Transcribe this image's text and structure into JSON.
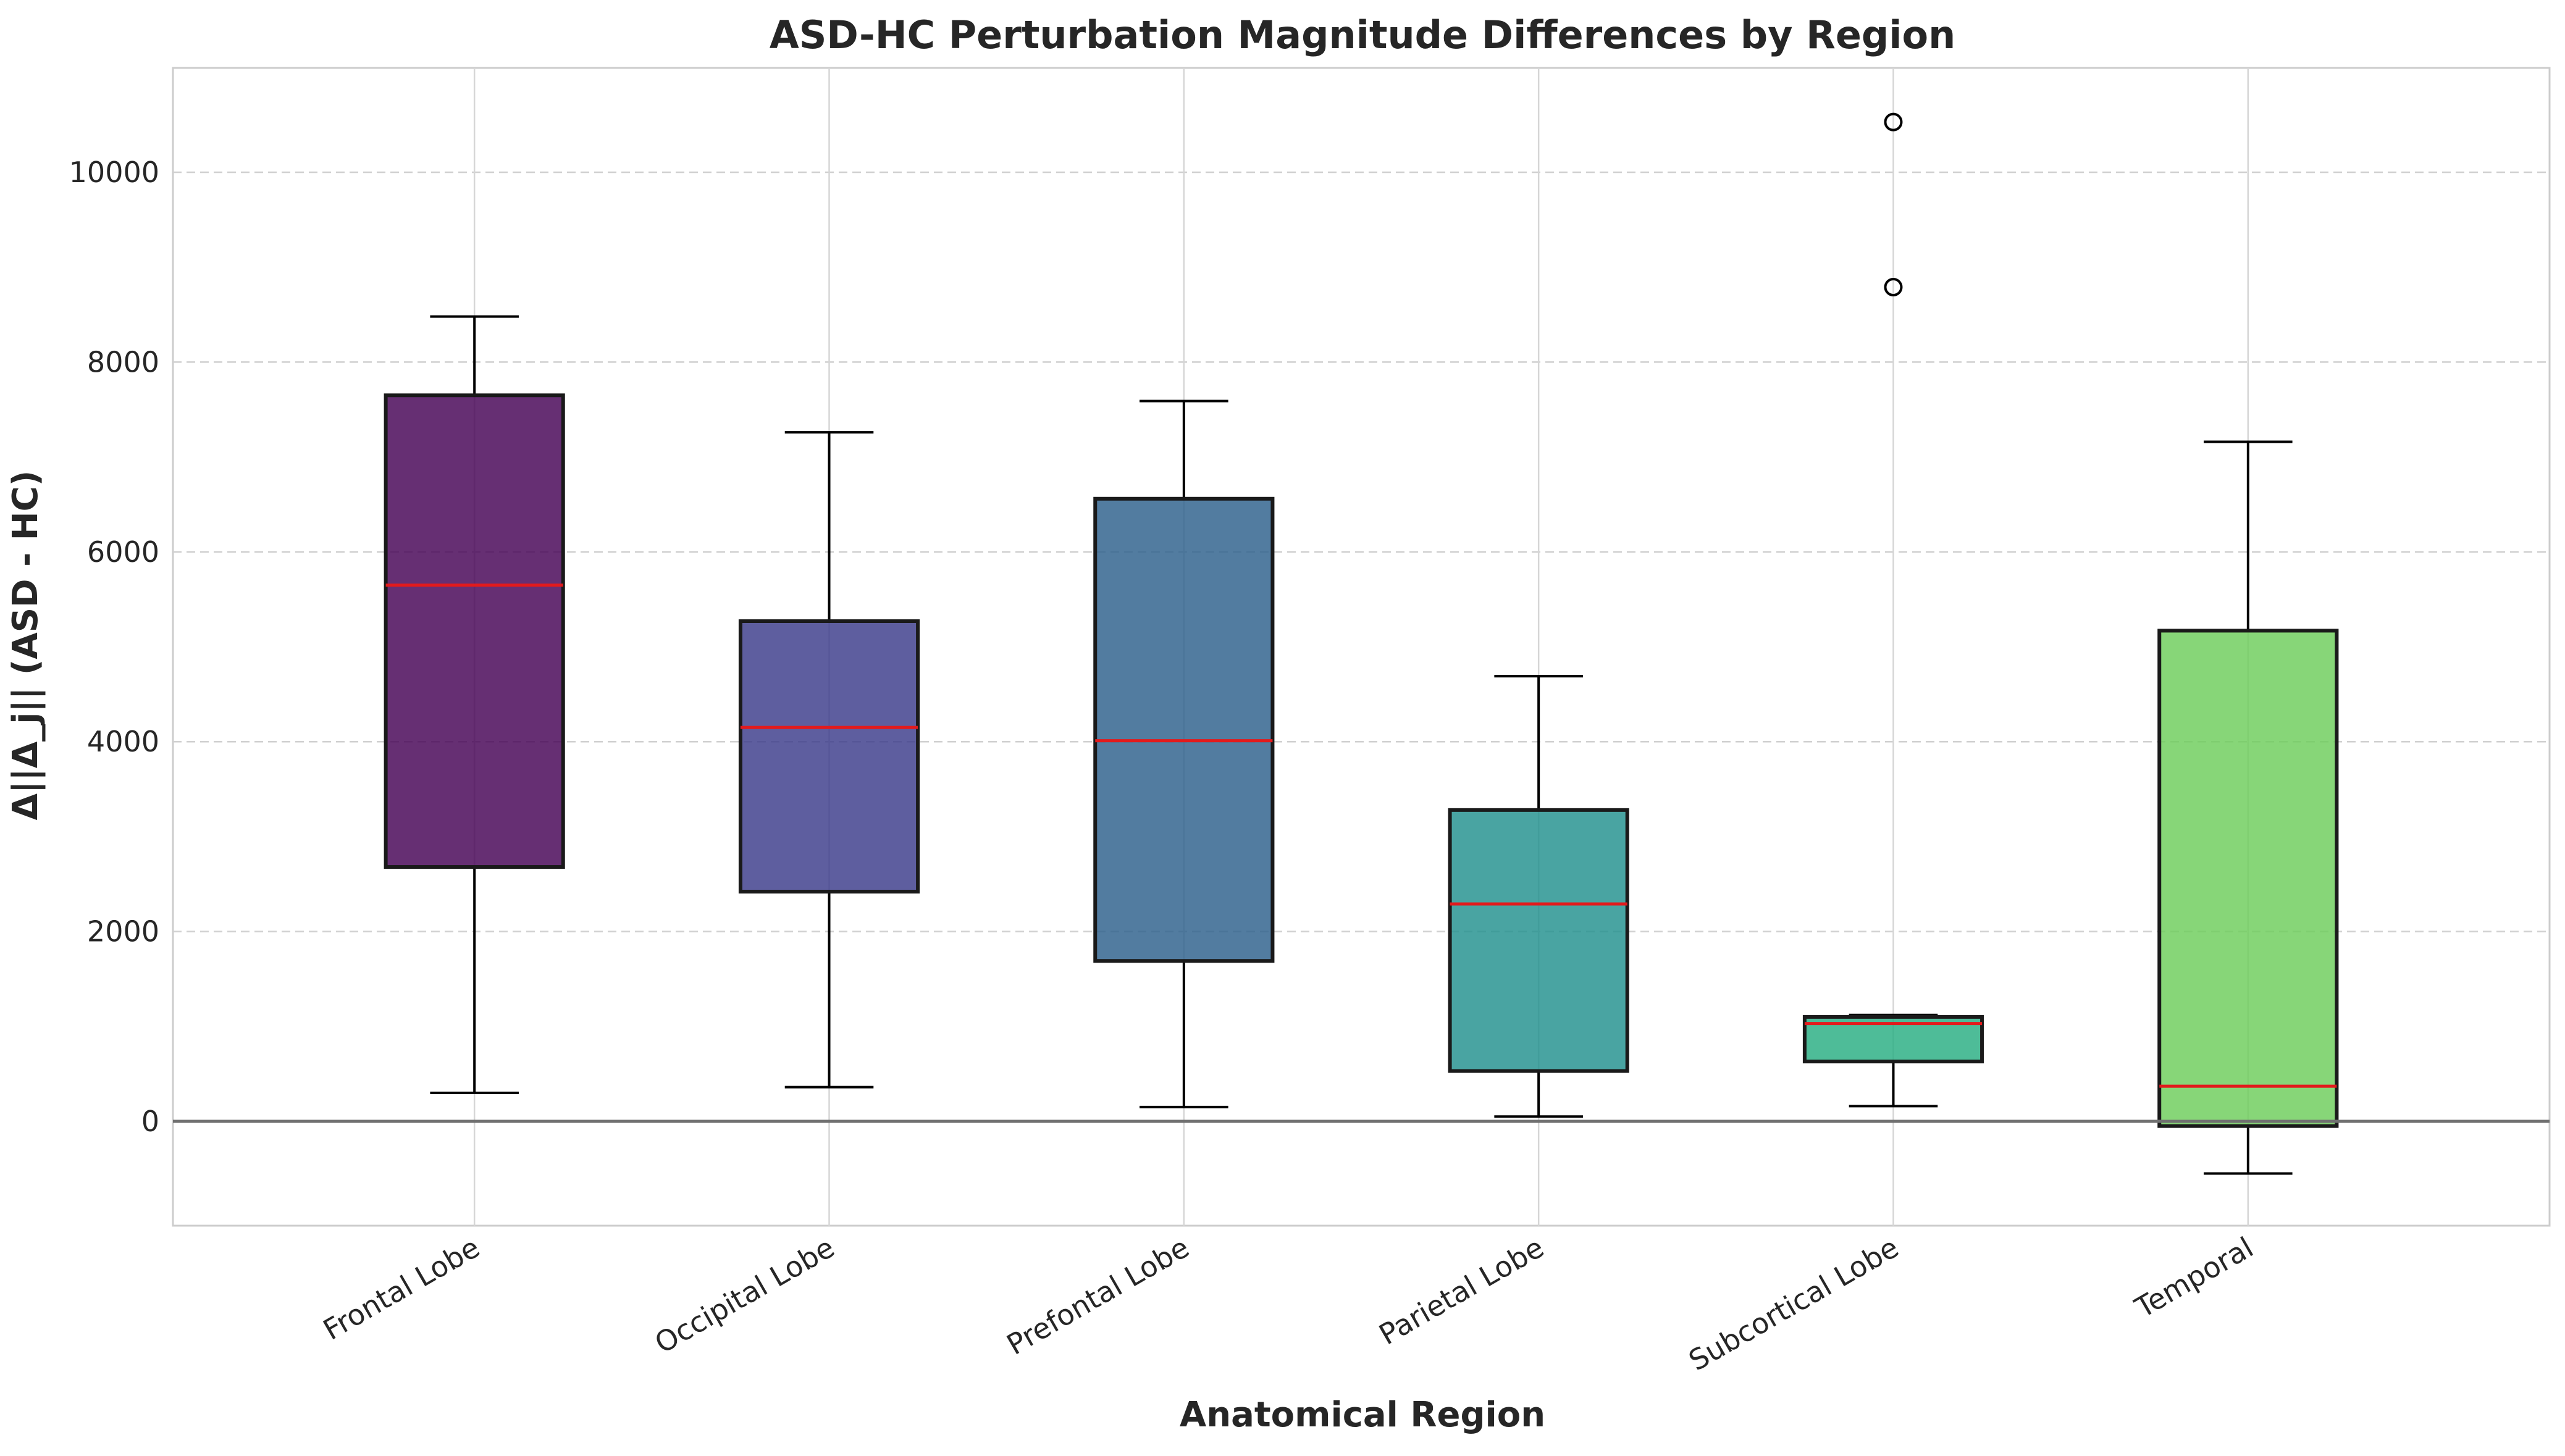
{
  "chart_data": {
    "type": "box",
    "title": "ASD-HC Perturbation Magnitude Differences by Region",
    "xlabel": "Anatomical Region",
    "ylabel": "Δ||Δ_j|| (ASD - HC)",
    "ylim": [
      -1100,
      11100
    ],
    "yticks": [
      0,
      2000,
      4000,
      6000,
      8000,
      10000
    ],
    "ytick_labels": [
      "0",
      "2000",
      "4000",
      "6000",
      "8000",
      "10000"
    ],
    "grid": true,
    "reference_line_y": 0,
    "categories": [
      "Frontal Lobe",
      "Occipital Lobe",
      "Prefontal Lobe",
      "Parietal Lobe",
      "Subcortical Lobe",
      "Temporal"
    ],
    "boxes": [
      {
        "whisker_low": 300,
        "q1": 2680,
        "median": 5650,
        "q3": 7650,
        "whisker_high": 8480,
        "outliers": [],
        "color": "#440154"
      },
      {
        "whisker_low": 360,
        "q1": 2420,
        "median": 4150,
        "q3": 5270,
        "whisker_high": 7260,
        "outliers": [],
        "color": "#3b3b8a"
      },
      {
        "whisker_low": 150,
        "q1": 1690,
        "median": 4010,
        "q3": 6560,
        "whisker_high": 7590,
        "outliers": [],
        "color": "#2c5f8b"
      },
      {
        "whisker_low": 50,
        "q1": 530,
        "median": 2290,
        "q3": 3280,
        "whisker_high": 4690,
        "outliers": [],
        "color": "#21908d"
      },
      {
        "whisker_low": 160,
        "q1": 630,
        "median": 1030,
        "q3": 1100,
        "whisker_high": 1120,
        "outliers": [
          8790,
          10530
        ],
        "color": "#27ad81"
      },
      {
        "whisker_low": -550,
        "q1": -50,
        "median": 370,
        "q3": 5170,
        "whisker_high": 7160,
        "outliers": [],
        "color": "#6ccd5a"
      }
    ],
    "median_color": "#e31a1c"
  }
}
